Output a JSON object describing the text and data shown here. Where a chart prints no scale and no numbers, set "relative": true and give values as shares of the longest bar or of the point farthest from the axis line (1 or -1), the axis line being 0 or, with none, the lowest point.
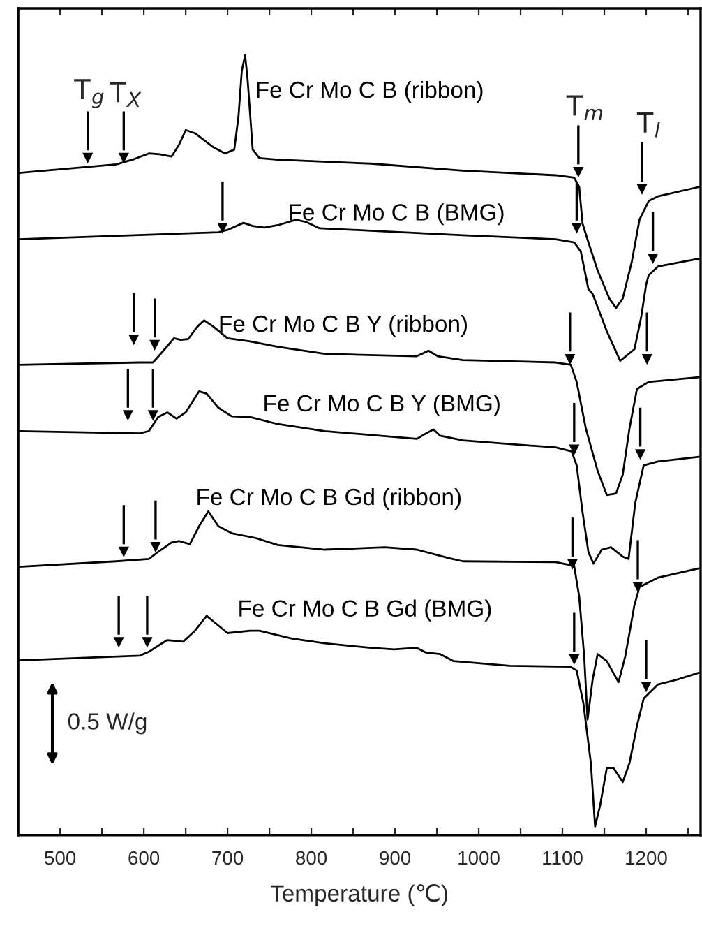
{
  "chart_data": {
    "type": "line",
    "relative": true,
    "xlabel": "Temperature (℃)",
    "xlim": [
      450,
      1265
    ],
    "xticks": [
      500,
      {
        "value": 550,
        "label": null
      },
      600,
      {
        "value": 650,
        "label": null
      },
      700,
      {
        "value": 750,
        "label": null
      },
      800,
      {
        "value": 850,
        "label": null
      },
      900,
      {
        "value": 950,
        "label": null
      },
      1000,
      {
        "value": 1050,
        "label": null
      },
      1100,
      {
        "value": 1150,
        "label": null
      },
      1200,
      {
        "value": 1250,
        "label": null
      }
    ],
    "tick_labels": "x",
    "grid": false,
    "legend": false,
    "marker": "none",
    "line_style": "solid",
    "series": [
      {
        "name": "Fe Cr Mo C B (ribbon)",
        "color": "#000000",
        "x": [
          451,
          567,
          589,
          606,
          619,
          633,
          642,
          650,
          661,
          683,
          697,
          708,
          713,
          717,
          721,
          724,
          730,
          738,
          760,
          871,
          981,
          1092,
          1114,
          1120,
          1124,
          1131,
          1142,
          1156,
          1164,
          1172,
          1183,
          1192,
          1203,
          1214,
          1263
        ],
        "values": [
          0.849,
          0.86,
          0.867,
          0.874,
          0.873,
          0.87,
          0.885,
          0.904,
          0.9,
          0.882,
          0.874,
          0.879,
          0.921,
          0.98,
          1.0,
          0.968,
          0.879,
          0.868,
          0.866,
          0.861,
          0.852,
          0.846,
          0.843,
          0.831,
          0.784,
          0.76,
          0.724,
          0.688,
          0.676,
          0.688,
          0.736,
          0.789,
          0.813,
          0.819,
          0.831
        ]
      },
      {
        "name": "Fe Cr Mo C B (BMG)",
        "color": "#000000",
        "x": [
          451,
          689,
          700,
          719,
          730,
          744,
          760,
          782,
          794,
          810,
          871,
          981,
          1092,
          1114,
          1122,
          1131,
          1136,
          1153,
          1169,
          1186,
          1194,
          1200,
          1203,
          1214,
          1263
        ],
        "values": [
          0.764,
          0.773,
          0.776,
          0.785,
          0.781,
          0.779,
          0.782,
          0.789,
          0.786,
          0.778,
          0.775,
          0.769,
          0.764,
          0.76,
          0.748,
          0.7,
          0.694,
          0.646,
          0.608,
          0.623,
          0.664,
          0.706,
          0.718,
          0.729,
          0.739
        ]
      },
      {
        "name": "Fe Cr Mo C B Y (ribbon)",
        "color": "#000000",
        "x": [
          451,
          595,
          611,
          625,
          636,
          644,
          653,
          664,
          672,
          683,
          700,
          727,
          760,
          816,
          926,
          940,
          951,
          981,
          1092,
          1110,
          1117,
          1128,
          1142,
          1153,
          1164,
          1172,
          1180,
          1189,
          1203,
          1263
        ],
        "values": [
          0.603,
          0.606,
          0.606,
          0.623,
          0.637,
          0.635,
          0.636,
          0.652,
          0.66,
          0.652,
          0.637,
          0.633,
          0.626,
          0.617,
          0.614,
          0.621,
          0.614,
          0.609,
          0.606,
          0.603,
          0.581,
          0.521,
          0.467,
          0.436,
          0.438,
          0.462,
          0.521,
          0.572,
          0.581,
          0.587
        ]
      },
      {
        "name": "Fe Cr Mo C B Y (BMG)",
        "color": "#000000",
        "x": [
          451,
          595,
          606,
          617,
          628,
          639,
          650,
          666,
          675,
          689,
          705,
          727,
          760,
          816,
          926,
          937,
          946,
          954,
          981,
          1092,
          1111,
          1117,
          1124,
          1131,
          1137,
          1147,
          1158,
          1172,
          1179,
          1187,
          1197,
          1214,
          1263
        ],
        "values": [
          0.518,
          0.515,
          0.518,
          0.536,
          0.542,
          0.534,
          0.542,
          0.569,
          0.566,
          0.548,
          0.537,
          0.536,
          0.527,
          0.518,
          0.508,
          0.515,
          0.52,
          0.512,
          0.506,
          0.497,
          0.492,
          0.474,
          0.414,
          0.363,
          0.348,
          0.366,
          0.369,
          0.357,
          0.354,
          0.426,
          0.474,
          0.479,
          0.485
        ]
      },
      {
        "name": "Fe Cr Mo C B Gd (ribbon)",
        "color": "#000000",
        "x": [
          451,
          567,
          606,
          617,
          633,
          642,
          655,
          666,
          677,
          689,
          705,
          733,
          760,
          816,
          888,
          926,
          965,
          981,
          1092,
          1114,
          1120,
          1126,
          1130,
          1136,
          1142,
          1153,
          1167,
          1175,
          1186,
          1192,
          1214,
          1263
        ],
        "values": [
          0.344,
          0.351,
          0.354,
          0.363,
          0.375,
          0.377,
          0.373,
          0.396,
          0.415,
          0.396,
          0.387,
          0.381,
          0.372,
          0.366,
          0.369,
          0.366,
          0.355,
          0.351,
          0.35,
          0.345,
          0.306,
          0.229,
          0.148,
          0.199,
          0.232,
          0.223,
          0.196,
          0.229,
          0.295,
          0.318,
          0.33,
          0.342
        ]
      },
      {
        "name": "Fe Cr Mo C B Gd (BMG)",
        "color": "#000000",
        "x": [
          451,
          595,
          606,
          619,
          628,
          647,
          661,
          675,
          683,
          700,
          727,
          738,
          777,
          816,
          871,
          899,
          926,
          937,
          954,
          970,
          1037,
          1109,
          1117,
          1125,
          1134,
          1139,
          1145,
          1153,
          1161,
          1172,
          1180,
          1189,
          1197,
          1214,
          1236,
          1263
        ],
        "values": [
          0.224,
          0.23,
          0.235,
          0.244,
          0.25,
          0.248,
          0.262,
          0.281,
          0.274,
          0.259,
          0.262,
          0.262,
          0.252,
          0.246,
          0.24,
          0.238,
          0.24,
          0.234,
          0.232,
          0.223,
          0.217,
          0.216,
          0.211,
          0.169,
          0.092,
          0.011,
          0.038,
          0.086,
          0.086,
          0.068,
          0.092,
          0.14,
          0.175,
          0.193,
          0.199,
          0.208
        ]
      },
      {
        "type": "scatter",
        "marker": "triangle",
        "color": "#000000",
        "x": [
          533,
          576,
          1119,
          1195,
          694,
          1117,
          1208,
          588,
          613,
          1109,
          1201,
          581,
          611,
          1114,
          1193,
          576,
          614,
          1112,
          1190,
          570,
          604,
          1114,
          1200
        ],
        "values": [
          0.868,
          0.868,
          0.85,
          0.828,
          0.778,
          0.778,
          0.739,
          0.635,
          0.628,
          0.61,
          0.61,
          0.538,
          0.538,
          0.494,
          0.488,
          0.363,
          0.369,
          0.347,
          0.318,
          0.247,
          0.247,
          0.225,
          0.19
        ]
      }
    ],
    "annotations": [
      "T$_{g}$",
      "T$_{X}$",
      "T$_{m}$",
      "T$_{l}$",
      "0.5 W/g"
    ]
  }
}
